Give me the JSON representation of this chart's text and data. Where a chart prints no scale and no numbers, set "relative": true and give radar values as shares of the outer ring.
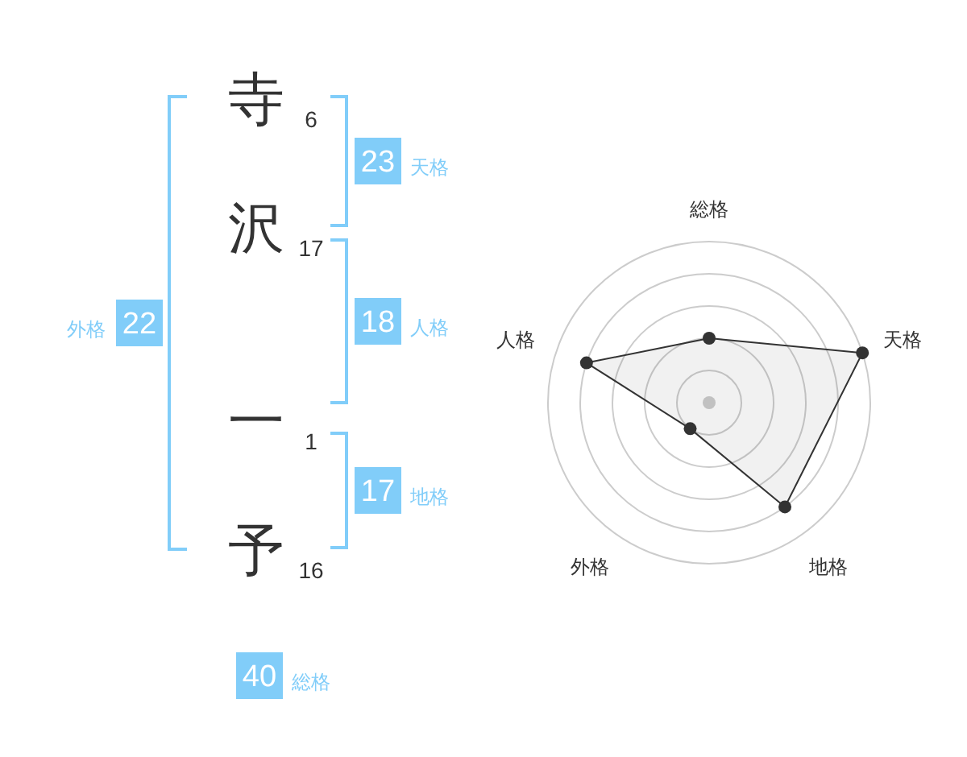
{
  "chart_data": [
    {
      "type": "other",
      "categories": [
        "寺",
        "沢",
        "一",
        "予"
      ],
      "values": [
        6,
        17,
        1,
        16
      ],
      "data_labels": true,
      "color": "#333333"
    },
    {
      "type": "other",
      "categories": [
        "天格",
        "人格",
        "地格",
        "外格",
        "総格"
      ],
      "values": [
        23,
        18,
        17,
        22,
        40
      ],
      "data_labels": true,
      "color": "#81cdf9"
    },
    {
      "type": "radar",
      "categories": [
        "総格",
        "天格",
        "地格",
        "外格",
        "人格"
      ],
      "relative": true,
      "grid": true,
      "marker": "circle",
      "series": [
        {
          "color": "#333333",
          "values": [
            0.4,
            1,
            0.8,
            0.2,
            0.8
          ]
        }
      ]
    }
  ]
}
